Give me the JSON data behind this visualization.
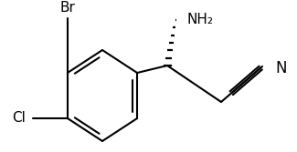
{
  "background": "#ffffff",
  "lc": "#000000",
  "lw": 1.5,
  "figsize": [
    3.25,
    1.67
  ],
  "dpi": 100,
  "font_size": 11,
  "n_font_size": 12,
  "br_label": "Br",
  "cl_label": "Cl",
  "nh2_label": "NH₂",
  "n_label": "N"
}
